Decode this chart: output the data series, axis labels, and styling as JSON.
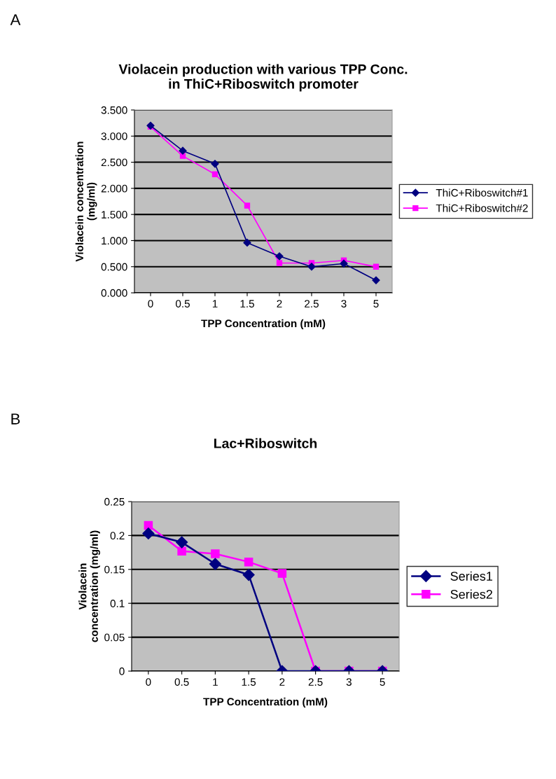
{
  "chart_data": [
    {
      "type": "line",
      "title": "Violacein production with various TPP Conc.\nin ThiC+Riboswitch promoter",
      "xlabel": "TPP Concentration (mM)",
      "ylabel": "Violacein concentration\n(mg/ml)",
      "annotations": [
        "A"
      ],
      "categories": [
        "0",
        "0.5",
        "1",
        "1.5",
        "2",
        "2.5",
        "3",
        "5"
      ],
      "series": [
        {
          "name": "ThiC+Riboswitch#1",
          "color": "#000080",
          "marker": "diamond",
          "values": [
            3.2,
            2.72,
            2.47,
            0.96,
            0.7,
            0.5,
            0.56,
            0.24
          ]
        },
        {
          "name": "ThiC+Riboswitch#2",
          "color": "#ff00ff",
          "marker": "square",
          "values": [
            3.18,
            2.62,
            2.27,
            1.67,
            0.57,
            0.57,
            0.62,
            0.5
          ]
        }
      ],
      "ylim": [
        0,
        3.5
      ],
      "yticks": [
        {
          "value": 0,
          "label": "0.000"
        },
        {
          "value": 0.5,
          "label": "0.500"
        },
        {
          "value": 1,
          "label": "1.000"
        },
        {
          "value": 1.5,
          "label": "1.500"
        },
        {
          "value": 2,
          "label": "2.000"
        },
        {
          "value": 2.5,
          "label": "2.500"
        },
        {
          "value": 3,
          "label": "3.000"
        },
        {
          "value": 3.5,
          "label": "3.500"
        }
      ],
      "grid": "y",
      "legend": "right",
      "line_style": "solid"
    },
    {
      "type": "line",
      "title": "Lac+Riboswitch",
      "xlabel": "TPP Concentration (mM)",
      "ylabel": "Violacein\nconcentration (mg/ml)",
      "annotations": [
        "B"
      ],
      "categories": [
        "0",
        "0.5",
        "1",
        "1.5",
        "2",
        "2.5",
        "3",
        "5"
      ],
      "series": [
        {
          "name": "Series1",
          "color": "#000080",
          "marker": "diamond",
          "values": [
            0.203,
            0.19,
            0.158,
            0.142,
            0,
            0,
            0,
            0
          ]
        },
        {
          "name": "Series2",
          "color": "#ff00ff",
          "marker": "square",
          "values": [
            0.215,
            0.177,
            0.173,
            0.161,
            0.144,
            0,
            0,
            0
          ]
        }
      ],
      "ylim": [
        0,
        0.25
      ],
      "yticks": [
        0,
        0.05,
        0.1,
        0.15,
        0.2,
        0.25
      ],
      "grid": "y",
      "legend": "right",
      "line_style": "solid"
    }
  ]
}
